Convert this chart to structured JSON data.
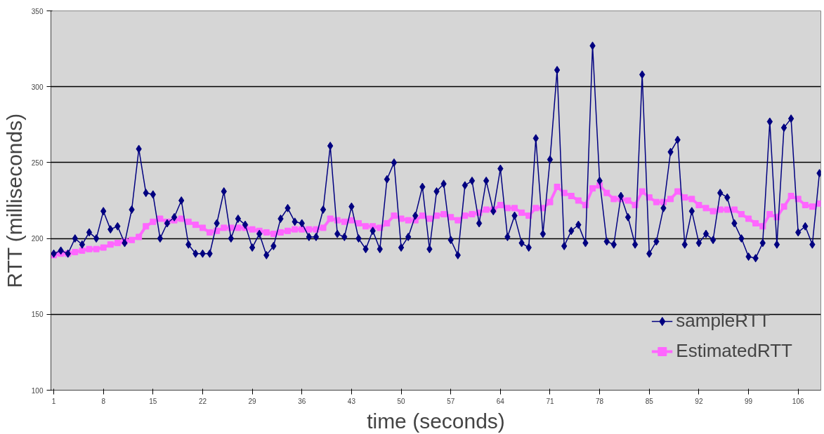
{
  "chart_data": {
    "type": "line",
    "xlabel": "time (seconds)",
    "ylabel": "RTT (milliseconds)",
    "x": [
      1,
      2,
      3,
      4,
      5,
      6,
      7,
      8,
      9,
      10,
      11,
      12,
      13,
      14,
      15,
      16,
      17,
      18,
      19,
      20,
      21,
      22,
      23,
      24,
      25,
      26,
      27,
      28,
      29,
      30,
      31,
      32,
      33,
      34,
      35,
      36,
      37,
      38,
      39,
      40,
      41,
      42,
      43,
      44,
      45,
      46,
      47,
      48,
      49,
      50,
      51,
      52,
      53,
      54,
      55,
      56,
      57,
      58,
      59,
      60,
      61,
      62,
      63,
      64,
      65,
      66,
      67,
      68,
      69,
      70,
      71,
      72,
      73,
      74,
      75,
      76,
      77,
      78,
      79,
      80,
      81,
      82,
      83,
      84,
      85,
      86,
      87,
      88,
      89,
      90,
      91,
      92,
      93,
      94,
      95,
      96,
      97,
      98,
      99,
      100,
      101,
      102,
      103,
      104,
      105,
      106,
      107,
      108,
      109
    ],
    "series": [
      {
        "name": "sampleRTT",
        "color": "#000080",
        "marker": "diamond",
        "values": [
          190,
          192,
          190,
          200,
          196,
          204,
          200,
          218,
          206,
          208,
          197,
          219,
          259,
          230,
          229,
          200,
          210,
          214,
          225,
          196,
          190,
          190,
          190,
          210,
          231,
          200,
          213,
          209,
          194,
          203,
          189,
          195,
          213,
          220,
          211,
          210,
          201,
          201,
          219,
          261,
          203,
          201,
          221,
          200,
          193,
          205,
          193,
          239,
          250,
          194,
          201,
          215,
          234,
          193,
          231,
          236,
          199,
          189,
          235,
          238,
          210,
          238,
          218,
          246,
          201,
          215,
          197,
          194,
          266,
          203,
          252,
          311,
          195,
          205,
          209,
          197,
          327,
          238,
          198,
          196,
          228,
          214,
          196,
          308,
          190,
          198,
          220,
          257,
          265,
          196,
          218,
          197,
          203,
          199,
          230,
          227,
          210,
          200,
          188,
          187,
          197,
          277,
          196,
          273,
          279,
          204,
          208,
          196,
          243
        ]
      },
      {
        "name": "EstimatedRTT",
        "color": "#ff66ff",
        "marker": "square",
        "values": [
          189,
          190,
          190,
          191,
          192,
          193,
          193,
          194,
          196,
          197,
          198,
          199,
          201,
          208,
          211,
          213,
          211,
          212,
          213,
          211,
          209,
          207,
          204,
          205,
          207,
          207,
          207,
          207,
          206,
          205,
          204,
          203,
          204,
          205,
          206,
          206,
          206,
          206,
          207,
          213,
          212,
          211,
          212,
          210,
          208,
          208,
          207,
          210,
          215,
          213,
          212,
          212,
          215,
          213,
          215,
          216,
          214,
          212,
          215,
          216,
          217,
          219,
          219,
          222,
          220,
          220,
          217,
          215,
          220,
          220,
          224,
          234,
          230,
          228,
          225,
          222,
          233,
          235,
          230,
          226,
          226,
          225,
          222,
          231,
          227,
          224,
          224,
          226,
          231,
          227,
          226,
          222,
          220,
          218,
          219,
          219,
          219,
          216,
          213,
          210,
          208,
          216,
          214,
          221,
          228,
          226,
          222,
          221,
          223
        ]
      }
    ],
    "xlim": [
      0.6,
      109.2
    ],
    "xticks": [
      1,
      8,
      15,
      22,
      29,
      36,
      43,
      50,
      57,
      64,
      71,
      78,
      85,
      92,
      99,
      106
    ],
    "ylim": [
      100,
      350
    ],
    "yticks": [
      100,
      150,
      200,
      250,
      300,
      350
    ],
    "grid": "y",
    "legend": "bottom right",
    "line_style": "solid"
  }
}
